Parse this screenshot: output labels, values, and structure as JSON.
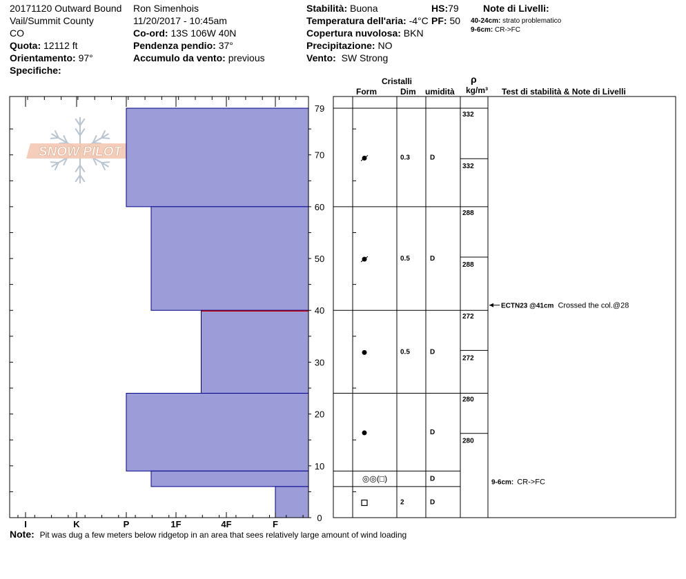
{
  "header": {
    "col1": [
      "20171120 Outward Bound",
      "Vail/Summit County",
      "CO"
    ],
    "observer": "Ron Simenhois",
    "datetime": "11/20/2017 - 10:45am",
    "elevation_label": "Quota:",
    "elevation_value": "12112 ft",
    "aspect_label": "Orientamento:",
    "aspect_value": "97°",
    "specifics_label": "Specifiche:",
    "coord_label": "Co-ord:",
    "coord_value": "13S 106W 40N",
    "slope_label": "Pendenza pendio:",
    "slope_value": "37°",
    "wind_load_label": "Accumulo da vento:",
    "wind_load_value": "previous",
    "stability_label": "Stabilità:",
    "stability_value": "Buona",
    "air_temp_label": "Temperatura dell'aria:",
    "air_temp_value": "-4°C",
    "cloud_label": "Copertura nuvolosa:",
    "cloud_value": "BKN",
    "precip_label": "Precipitazione:",
    "precip_value": "NO",
    "wind_label": "Vento:",
    "wind_value": "SW Strong",
    "hs_label": "HS:",
    "hs_value": "79",
    "pf_label": "PF:",
    "pf_value": "50",
    "layer_notes_title": "Note di Livelli:",
    "layer_notes": [
      {
        "depth": "40-24cm:",
        "text": "strato problematico"
      },
      {
        "depth": "9-6cm:",
        "text": "CR->FC"
      }
    ]
  },
  "logo_text": "SNOW PILOT",
  "columns": {
    "crystals": "Cristalli",
    "form": "Form",
    "size": "Dim",
    "moisture": "umidità",
    "density_symbol": "ρ",
    "density_unit": "kg/m³",
    "tests": "Test di stabilità & Note di Livelli"
  },
  "note_label": "Note:",
  "note_text": "Pit was dug a few meters below ridgetop in an area that sees relatively large amount of wind loading",
  "colors": {
    "layer_fill": "#9c9cd8",
    "layer_stroke": "#00008b",
    "weak_layer": "#cc0000"
  },
  "chart_data": {
    "type": "bar",
    "subtype": "snow-profile-hardness",
    "hardness_scale": [
      "I",
      "K",
      "P",
      "1F",
      "4F",
      "F"
    ],
    "y_ticks": [
      0,
      10,
      20,
      30,
      40,
      50,
      60,
      70,
      79
    ],
    "ylim": [
      0,
      79
    ],
    "layers": [
      {
        "top": 79,
        "bottom": 60,
        "hardness": "P",
        "form": "decomposing",
        "size": "0.3",
        "moisture": "D"
      },
      {
        "top": 60,
        "bottom": 40,
        "hardness": "P-1F",
        "form": "decomposing",
        "size": "0.5",
        "moisture": "D"
      },
      {
        "top": 40,
        "bottom": 24,
        "hardness": "1F-4F",
        "form": "rounded",
        "size": "0.5",
        "moisture": "D"
      },
      {
        "top": 24,
        "bottom": 9,
        "hardness": "P",
        "form": "rounded",
        "size": "",
        "moisture": "D"
      },
      {
        "top": 9,
        "bottom": 6,
        "hardness": "P-1F",
        "form": "crust(facet)",
        "size": "",
        "moisture": "D"
      },
      {
        "top": 6,
        "bottom": 0,
        "hardness": "F",
        "form": "facet",
        "size": "2",
        "moisture": "D"
      }
    ],
    "weak_layer_depth": 40,
    "density": [
      {
        "value": 332,
        "depth": 79
      },
      {
        "value": 332,
        "depth": 69
      },
      {
        "value": 288,
        "depth": 60
      },
      {
        "value": 288,
        "depth": 50
      },
      {
        "value": 272,
        "depth": 40
      },
      {
        "value": 272,
        "depth": 32
      },
      {
        "value": 280,
        "depth": 24
      },
      {
        "value": 280,
        "depth": 16
      }
    ],
    "tests": [
      {
        "depth": 41,
        "label": "ECTN23 @41cm",
        "comment": "Crossed the col.@28"
      },
      {
        "depth": 7,
        "label": "9-6cm:",
        "comment": "CR->FC"
      }
    ]
  }
}
